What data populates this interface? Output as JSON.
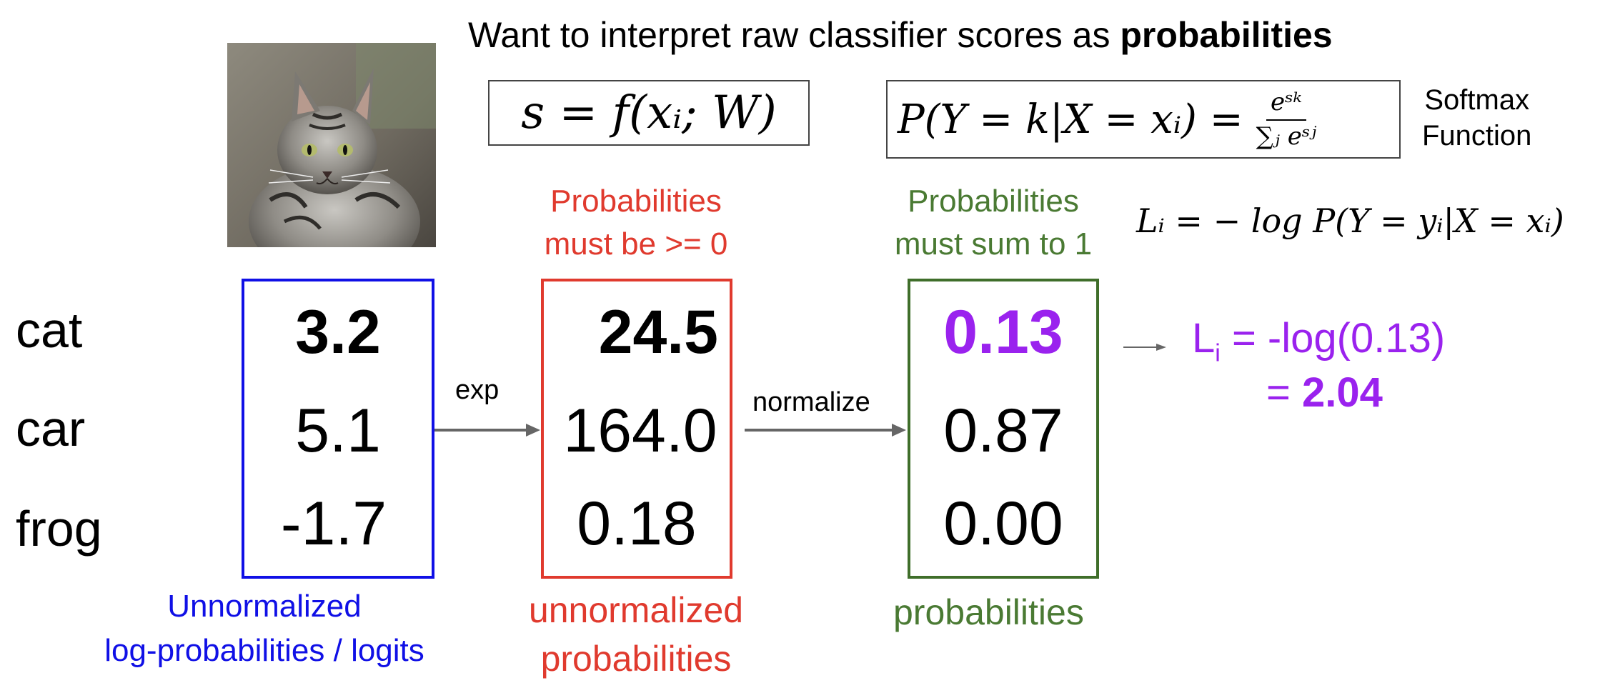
{
  "title": {
    "text": "Want to interpret raw classifier scores as ",
    "bold": "probabilities"
  },
  "formulas": {
    "score": "s = f(xᵢ; W)",
    "softmax_lhs": "P(Y = k|X = xᵢ) =",
    "softmax_num": "eˢᵏ",
    "softmax_den": "∑ⱼ eˢʲ",
    "softmax_label_1": "Softmax",
    "softmax_label_2": "Function",
    "loss": "Lᵢ = − log P(Y = yᵢ|X = xᵢ)"
  },
  "classes": [
    "cat",
    "car",
    "frog"
  ],
  "columns": {
    "logits": {
      "values": [
        "3.2",
        "5.1",
        "-1.7"
      ],
      "caption_1": "Unnormalized",
      "caption_2": "log-probabilities / logits",
      "color": "#1010e6"
    },
    "unnormalized": {
      "values": [
        "24.5",
        "164.0",
        "0.18"
      ],
      "top_1": "Probabilities",
      "top_2": "must be >= 0",
      "caption_1": "unnormalized",
      "caption_2": "probabilities",
      "color": "#e03a2e"
    },
    "probabilities": {
      "values": [
        "0.13",
        "0.87",
        "0.00"
      ],
      "top_1": "Probabilities",
      "top_2": "must sum to 1",
      "caption": "probabilities",
      "color": "#4a7a33"
    }
  },
  "arrows": {
    "exp": "exp",
    "normalize": "normalize"
  },
  "loss_result": {
    "line1_prefix": "L",
    "line1_sub": "i",
    "line1_rest": " = -log(0.13)",
    "line2_prefix": "= ",
    "line2_value": "2.04",
    "color": "#9a22ee"
  },
  "image": {
    "subject": "cat"
  }
}
